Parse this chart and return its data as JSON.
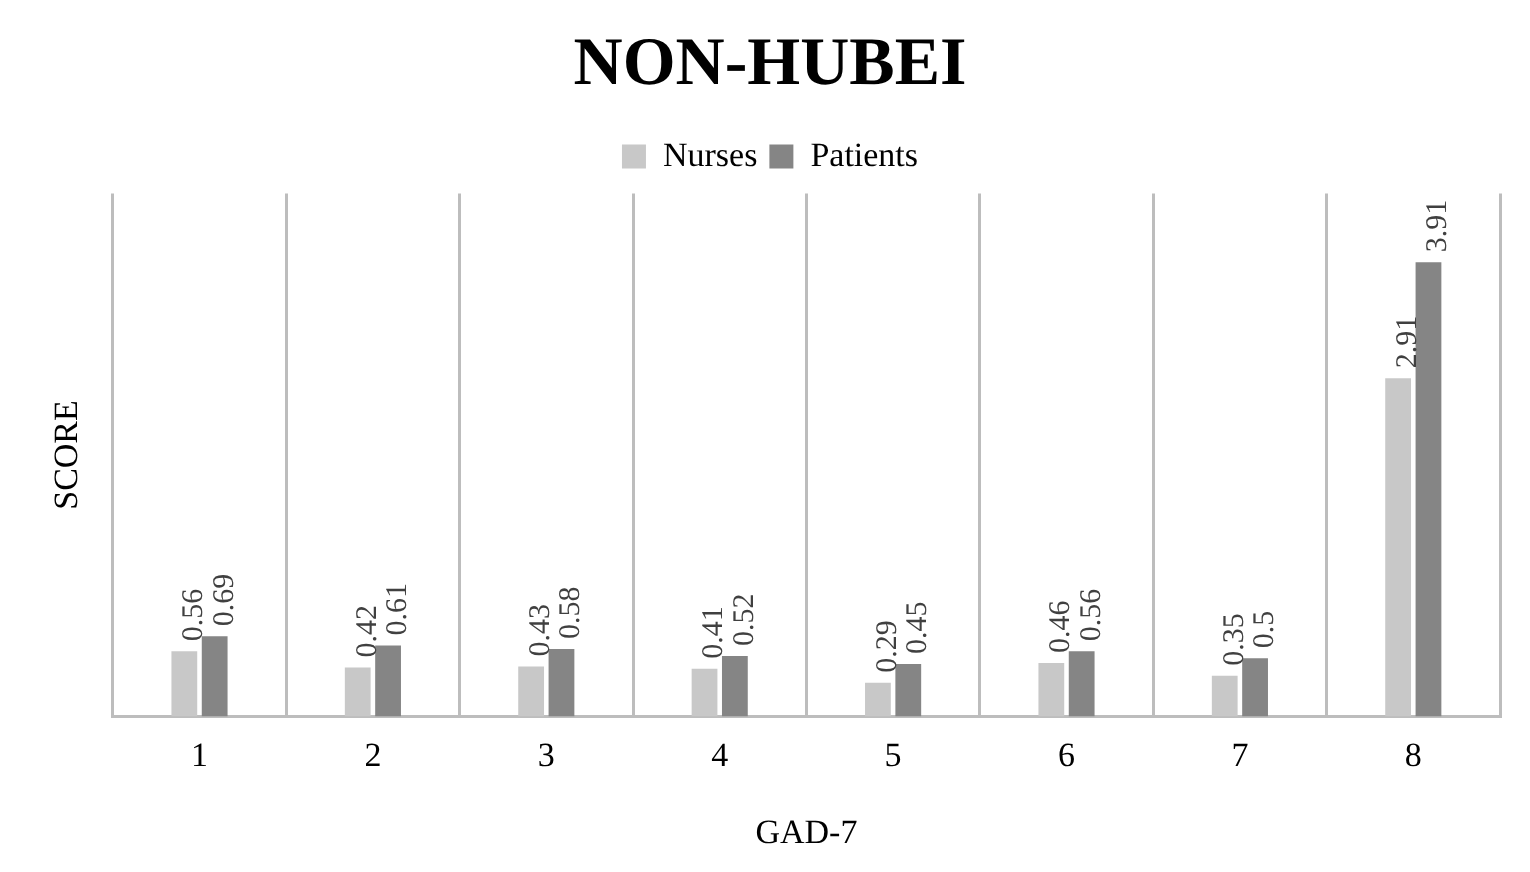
{
  "chart_data": {
    "type": "bar",
    "title": "NON-HUBEI",
    "xlabel": "GAD-7",
    "ylabel": "SCORE",
    "categories": [
      "1",
      "2",
      "3",
      "4",
      "5",
      "6",
      "7",
      "8"
    ],
    "series": [
      {
        "name": "Nurses",
        "color": "#c8c8c8",
        "values": [
          0.56,
          0.42,
          0.43,
          0.41,
          0.29,
          0.46,
          0.35,
          2.91
        ]
      },
      {
        "name": "Patients",
        "color": "#858585",
        "values": [
          0.69,
          0.61,
          0.58,
          0.52,
          0.45,
          0.56,
          0.5,
          3.91
        ]
      }
    ],
    "ylim": [
      0,
      4.5
    ],
    "grid": "x",
    "legend": "top",
    "data_labels": true
  }
}
